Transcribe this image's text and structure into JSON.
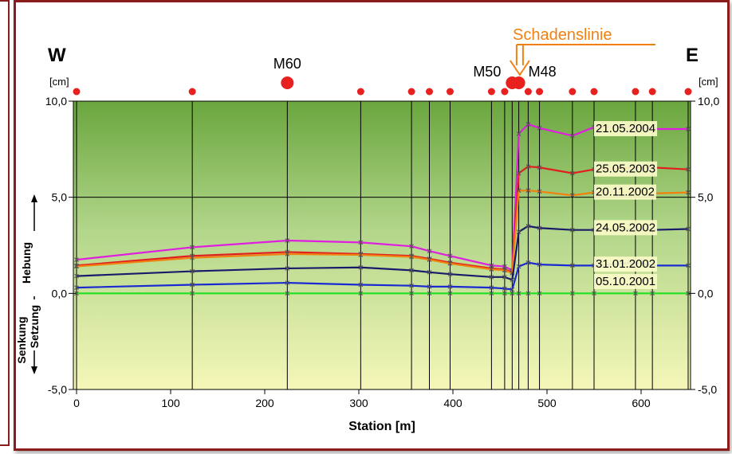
{
  "chart_data": {
    "type": "line",
    "title": "",
    "xlabel": "Station [m]",
    "ylabel_up": "Hebung",
    "ylabel_down_1": "Senkung",
    "ylabel_down_2": "Setzung",
    "unit_left": "[cm]",
    "unit_right": "[cm]",
    "corner_left": "W",
    "corner_right": "E",
    "xlim": [
      0,
      650
    ],
    "ylim": [
      -5,
      10
    ],
    "x_ticks": [
      0,
      100,
      200,
      300,
      400,
      500,
      600
    ],
    "x_tick_labels": [
      "0",
      "100",
      "200",
      "300",
      "400",
      "500",
      "600"
    ],
    "y_ticks": [
      -5,
      0,
      5,
      10
    ],
    "y_tick_labels": [
      "-5,0",
      "0,0",
      "5,0",
      "10,0"
    ],
    "grid": true,
    "stations": [
      0,
      123,
      224,
      302,
      356,
      375,
      397,
      441,
      455,
      463,
      470,
      480,
      492,
      527,
      550,
      594,
      612,
      650
    ],
    "markers": [
      {
        "label": "M60",
        "station": 224,
        "large": true
      },
      {
        "label": "M50",
        "station": 463,
        "large": true
      },
      {
        "label": "M48",
        "station": 470,
        "large": true
      }
    ],
    "schadenslinie": {
      "label": "Schadenslinie",
      "station": 466
    },
    "series": [
      {
        "name": "21.05.2004",
        "color": "#e01ee0",
        "x": [
          0,
          123,
          224,
          302,
          356,
          375,
          397,
          441,
          455,
          463,
          470,
          480,
          492,
          527,
          550,
          594,
          612,
          650
        ],
        "y": [
          1.75,
          2.4,
          2.75,
          2.65,
          2.45,
          2.2,
          1.95,
          1.45,
          1.4,
          1.2,
          8.3,
          8.8,
          8.6,
          8.2,
          8.65,
          8.65,
          8.55,
          8.55
        ]
      },
      {
        "name": "25.05.2003",
        "color": "#e02020",
        "x": [
          0,
          123,
          224,
          302,
          356,
          375,
          397,
          441,
          455,
          463,
          470,
          480,
          492,
          527,
          550,
          594,
          612,
          650
        ],
        "y": [
          1.45,
          1.95,
          2.15,
          2.05,
          1.95,
          1.8,
          1.6,
          1.3,
          1.25,
          1.1,
          6.25,
          6.6,
          6.55,
          6.25,
          6.45,
          6.55,
          6.55,
          6.45
        ]
      },
      {
        "name": "20.11.2002",
        "color": "#f08010",
        "x": [
          0,
          123,
          224,
          302,
          356,
          375,
          397,
          441,
          455,
          463,
          470,
          480,
          492,
          527,
          550,
          594,
          612,
          650
        ],
        "y": [
          1.4,
          1.85,
          2.05,
          2.0,
          1.9,
          1.75,
          1.55,
          1.25,
          1.2,
          1.05,
          5.35,
          5.35,
          5.3,
          5.1,
          5.25,
          5.3,
          5.2,
          5.25
        ]
      },
      {
        "name": "24.05.2002",
        "color": "#1a1a6a",
        "x": [
          0,
          123,
          224,
          302,
          356,
          375,
          397,
          441,
          455,
          463,
          470,
          480,
          492,
          527,
          550,
          594,
          612,
          650
        ],
        "y": [
          0.9,
          1.15,
          1.3,
          1.35,
          1.2,
          1.1,
          1.0,
          0.85,
          0.85,
          0.7,
          3.2,
          3.5,
          3.4,
          3.3,
          3.3,
          3.35,
          3.3,
          3.35
        ]
      },
      {
        "name": "31.01.2002",
        "color": "#1a2ad0",
        "x": [
          0,
          123,
          224,
          302,
          356,
          375,
          397,
          441,
          455,
          463,
          470,
          480,
          492,
          527,
          550,
          594,
          612,
          650
        ],
        "y": [
          0.3,
          0.45,
          0.55,
          0.45,
          0.4,
          0.35,
          0.35,
          0.3,
          0.25,
          0.2,
          1.4,
          1.6,
          1.5,
          1.45,
          1.45,
          1.6,
          1.45,
          1.45
        ]
      },
      {
        "name": "05.10.2001",
        "color": "#20e020",
        "x": [
          0,
          650
        ],
        "y": [
          0,
          0
        ]
      }
    ]
  }
}
